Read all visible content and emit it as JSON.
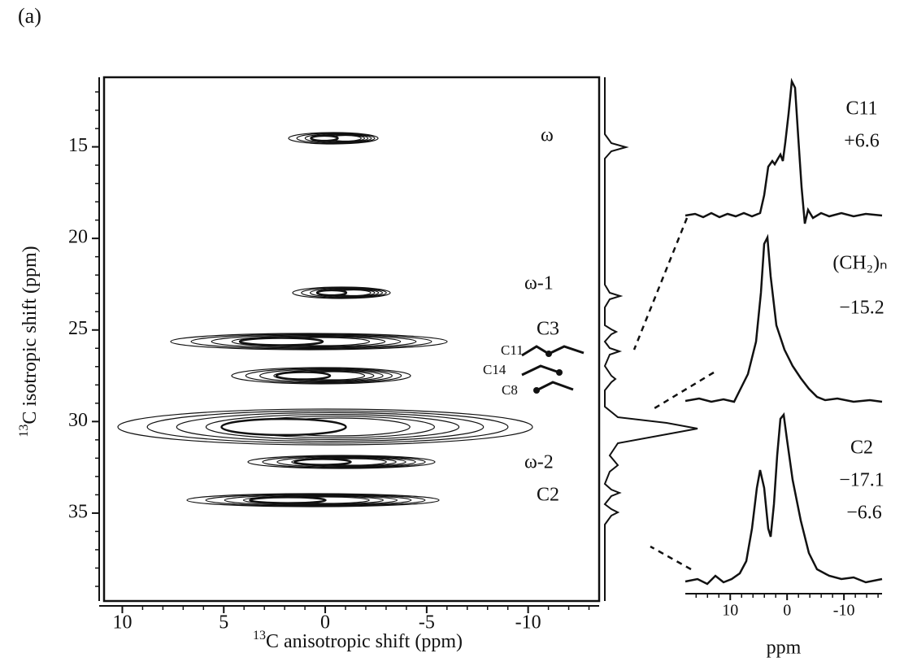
{
  "panel_label": "(a)",
  "main_plot": {
    "x_label_sup": "13",
    "x_label": "C anisotropic shift (ppm)",
    "y_label_sup": "13",
    "y_label": "C isotropic shift (ppm)",
    "xlim": [
      10.9,
      -13.5
    ],
    "xticks": [
      10,
      5,
      0,
      -5,
      -10
    ],
    "ylim": [
      11.2,
      39.8
    ],
    "yticks": [
      15,
      20,
      25,
      30,
      35
    ],
    "peak_labels": [
      "ω",
      "ω-1",
      "C3",
      "C11",
      "C14",
      "C8",
      "ω-2",
      "C2"
    ]
  },
  "slices": [
    {
      "name": "C11",
      "values": [
        "+6.6"
      ]
    },
    {
      "name": "(CH₂)ₙ",
      "values": [
        "−15.2"
      ]
    },
    {
      "name": "C2",
      "values": [
        "−17.1",
        "−6.6"
      ]
    }
  ],
  "slice_axis": {
    "xlim": [
      17.9,
      -16.7
    ],
    "xticks": [
      10,
      0,
      -10
    ],
    "x_label": "ppm"
  }
}
